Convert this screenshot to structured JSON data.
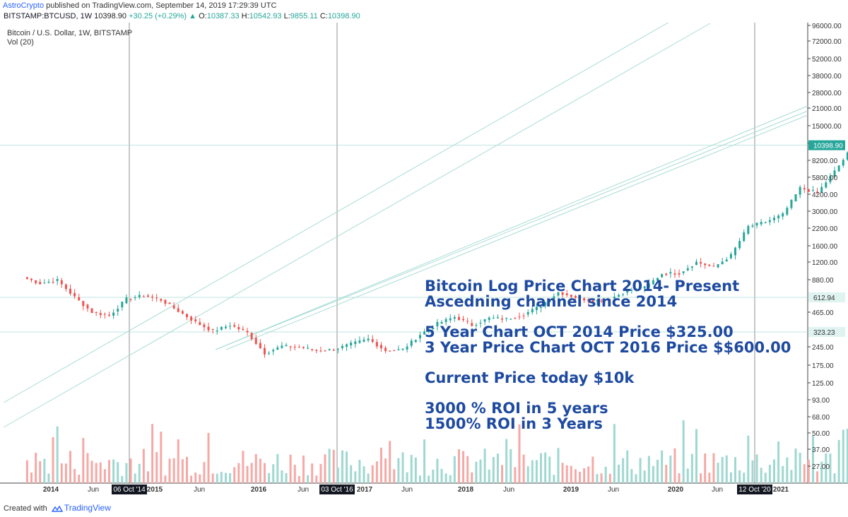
{
  "header": {
    "author": "AstroCrypto",
    "published": "published on TradingView.com, September 14, 2019 17:29:39 UTC"
  },
  "quote": {
    "symbol": "BITSTAMP:BTCUSD, 1W",
    "last": "10398.90",
    "change": "+30.25 (+0.29%)",
    "open_label": "O:",
    "open": "10387.33",
    "high_label": "H:",
    "high": "10542.93",
    "low_label": "L:",
    "low": "9855.11",
    "close_label": "C:",
    "close": "10398.90"
  },
  "legend": {
    "title": "Bitcoin / U.S. Dollar, 1W, BITSTAMP",
    "volume": "Vol (20)"
  },
  "overlay_lines": [
    "Bitcoin Log Price Chart 2014- Present",
    "Ascedning channel since 2014",
    "5 Year Chart OCT 2014 Price $325.00",
    "3 Year Price Chart OCT 2016 Price $$600.00",
    "Current Price today $10k",
    "3000 % ROI in 5 years",
    "1500% ROI in 3 Years"
  ],
  "footer": {
    "created": "Created with",
    "brand": "TradingView"
  },
  "colors": {
    "up": "#26a69a",
    "down": "#ef5350",
    "vol_up": "#9fd8d1",
    "vol_down": "#f5a9a6",
    "channel": "#a8dcd6",
    "overlay_text": "#1e4aa0"
  },
  "chart_data": {
    "type": "candlestick",
    "scale": "log",
    "interval": "1W",
    "y_ticks": [
      "96000.00",
      "72000.00",
      "52000.00",
      "38000.00",
      "28000.00",
      "21000.00",
      "15000.00",
      "11000.00",
      "8200.00",
      "5800.00",
      "4200.00",
      "3000.00",
      "2200.00",
      "1600.00",
      "1200.00",
      "880.00",
      "465.00",
      "245.00",
      "175.00",
      "125.00",
      "93.00",
      "68.00",
      "50.00",
      "37.00",
      "27.00"
    ],
    "x_ticks": [
      "2014",
      "Jun",
      "2015",
      "Jun",
      "2016",
      "Jun",
      "2017",
      "Jun",
      "2018",
      "Jun",
      "2019",
      "Jun",
      "2020",
      "Jun",
      "2021"
    ],
    "x_markers": [
      "06 Oct '14",
      "03 Oct '16",
      "12 Oct '20"
    ],
    "price_labels": [
      {
        "value": "10398.90",
        "kind": "current"
      },
      {
        "value": "612.94",
        "kind": "hline"
      },
      {
        "value": "323.23",
        "kind": "hline"
      }
    ],
    "price_path": [
      [
        "2013-11",
        900
      ],
      [
        "2013-12",
        800
      ],
      [
        "2014-01",
        850
      ],
      [
        "2014-02",
        620
      ],
      [
        "2014-03",
        470
      ],
      [
        "2014-04",
        440
      ],
      [
        "2014-05",
        600
      ],
      [
        "2014-06",
        640
      ],
      [
        "2014-07",
        590
      ],
      [
        "2014-08",
        480
      ],
      [
        "2014-09",
        390
      ],
      [
        "2014-10",
        330
      ],
      [
        "2014-11",
        370
      ],
      [
        "2014-12",
        320
      ],
      [
        "2015-01",
        220
      ],
      [
        "2015-02",
        250
      ],
      [
        "2015-03",
        245
      ],
      [
        "2015-04",
        230
      ],
      [
        "2015-05",
        235
      ],
      [
        "2015-06",
        260
      ],
      [
        "2015-07",
        285
      ],
      [
        "2015-08",
        230
      ],
      [
        "2015-09",
        235
      ],
      [
        "2015-10",
        310
      ],
      [
        "2015-11",
        380
      ],
      [
        "2015-12",
        430
      ],
      [
        "2016-01",
        370
      ],
      [
        "2016-02",
        420
      ],
      [
        "2016-03",
        415
      ],
      [
        "2016-04",
        450
      ],
      [
        "2016-05",
        530
      ],
      [
        "2016-06",
        680
      ],
      [
        "2016-07",
        620
      ],
      [
        "2016-08",
        575
      ],
      [
        "2016-09",
        605
      ],
      [
        "2016-10",
        700
      ],
      [
        "2016-11",
        740
      ],
      [
        "2016-12",
        960
      ],
      [
        "2017-01",
        970
      ],
      [
        "2017-02",
        1190
      ],
      [
        "2017-03",
        1080
      ],
      [
        "2017-04",
        1350
      ],
      [
        "2017-05",
        2300
      ],
      [
        "2017-06",
        2500
      ],
      [
        "2017-07",
        2870
      ],
      [
        "2017-08",
        4700
      ],
      [
        "2017-09",
        4300
      ],
      [
        "2017-10",
        6400
      ],
      [
        "2017-11",
        9900
      ],
      [
        "2017-12",
        14000
      ],
      [
        "2018-01",
        10100
      ],
      [
        "2018-02",
        10300
      ],
      [
        "2018-03",
        6900
      ],
      [
        "2018-04",
        9200
      ],
      [
        "2018-05",
        7500
      ],
      [
        "2018-06",
        6400
      ],
      [
        "2018-07",
        7700
      ],
      [
        "2018-08",
        7000
      ],
      [
        "2018-09",
        6600
      ],
      [
        "2018-10",
        6300
      ],
      [
        "2018-11",
        4000
      ],
      [
        "2018-12",
        3700
      ],
      [
        "2019-01",
        3450
      ],
      [
        "2019-02",
        3800
      ],
      [
        "2019-03",
        4100
      ],
      [
        "2019-04",
        5300
      ],
      [
        "2019-05",
        8600
      ],
      [
        "2019-06",
        10800
      ],
      [
        "2019-07",
        10100
      ],
      [
        "2019-08",
        9600
      ],
      [
        "2019-09",
        10398.9
      ]
    ],
    "ylim": [
      20,
      96000
    ]
  }
}
